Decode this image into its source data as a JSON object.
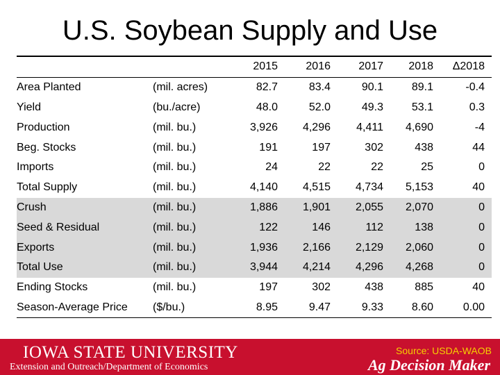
{
  "title": "U.S. Soybean Supply and Use",
  "columns": [
    "",
    "",
    "2015",
    "2016",
    "2017",
    "2018",
    "Δ2018"
  ],
  "rows": [
    {
      "label": "Area Planted",
      "unit": "(mil. acres)",
      "values": [
        "82.7",
        "83.4",
        "90.1",
        "89.1",
        "-0.4"
      ],
      "shaded": false
    },
    {
      "label": "Yield",
      "unit": "(bu./acre)",
      "values": [
        "48.0",
        "52.0",
        "49.3",
        "53.1",
        "0.3"
      ],
      "shaded": false
    },
    {
      "label": "Production",
      "unit": "(mil. bu.)",
      "values": [
        "3,926",
        "4,296",
        "4,411",
        "4,690",
        "-4"
      ],
      "shaded": false
    },
    {
      "label": "Beg. Stocks",
      "unit": "(mil. bu.)",
      "values": [
        "191",
        "197",
        "302",
        "438",
        "44"
      ],
      "shaded": false
    },
    {
      "label": "Imports",
      "unit": "(mil. bu.)",
      "values": [
        "24",
        "22",
        "22",
        "25",
        "0"
      ],
      "shaded": false
    },
    {
      "label": "Total Supply",
      "unit": "(mil. bu.)",
      "values": [
        "4,140",
        "4,515",
        "4,734",
        "5,153",
        "40"
      ],
      "shaded": false
    },
    {
      "label": "Crush",
      "unit": "(mil. bu.)",
      "values": [
        "1,886",
        "1,901",
        "2,055",
        "2,070",
        "0"
      ],
      "shaded": true
    },
    {
      "label": "Seed & Residual",
      "unit": "(mil. bu.)",
      "values": [
        "122",
        "146",
        "112",
        "138",
        "0"
      ],
      "shaded": true
    },
    {
      "label": "Exports",
      "unit": "(mil. bu.)",
      "values": [
        "1,936",
        "2,166",
        "2,129",
        "2,060",
        "0"
      ],
      "shaded": true
    },
    {
      "label": "Total Use",
      "unit": "(mil. bu.)",
      "values": [
        "3,944",
        "4,214",
        "4,296",
        "4,268",
        "0"
      ],
      "shaded": true
    },
    {
      "label": "Ending Stocks",
      "unit": "(mil. bu.)",
      "values": [
        "197",
        "302",
        "438",
        "885",
        "40"
      ],
      "shaded": false
    },
    {
      "label": "Season-Average Price",
      "unit": "($/bu.)",
      "values": [
        "8.95",
        "9.47",
        "9.33",
        "8.60",
        "0.00"
      ],
      "shaded": false
    }
  ],
  "footer": {
    "logo_text": "IOWA STATE UNIVERSITY",
    "subtitle": "Extension and Outreach/Department of Economics",
    "source": "Source: USDA-WAOB",
    "brand": "Ag Decision Maker"
  },
  "colors": {
    "footer_red": "#c8102e",
    "source_yellow": "#f6d000",
    "shade_gray": "#d9d9d9"
  }
}
